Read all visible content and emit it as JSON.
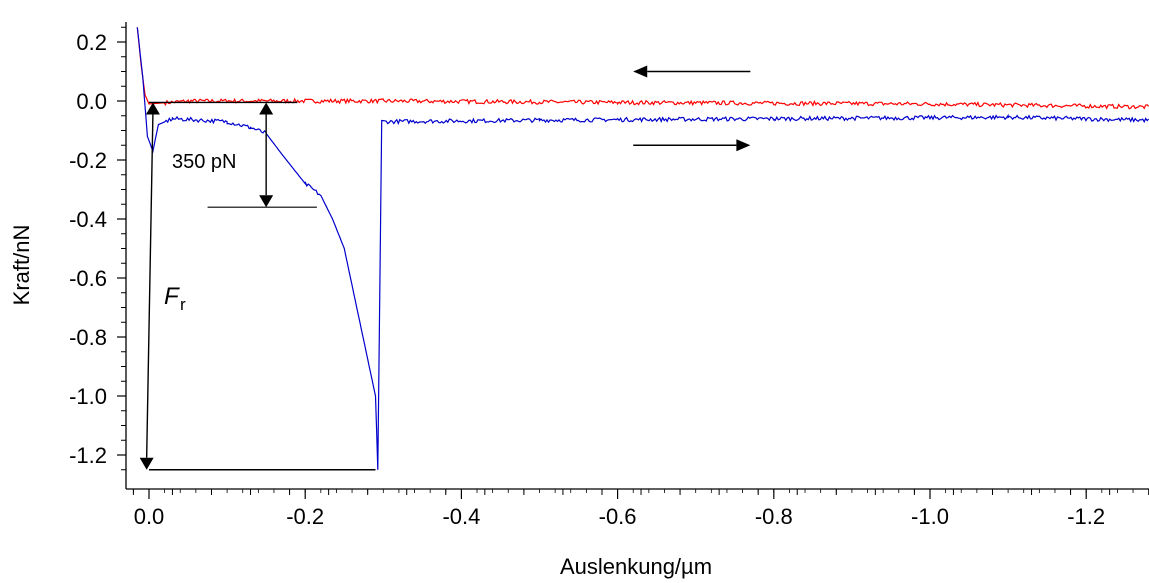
{
  "chart_data": {
    "type": "line",
    "xlabel": "Auslenkung/µm",
    "ylabel": "Kraft/nN",
    "x_reversed": true,
    "xlim": [
      0.02,
      -1.28
    ],
    "ylim": [
      -1.29,
      0.26
    ],
    "x_ticks": [
      0.0,
      -0.2,
      -0.4,
      -0.6,
      -0.8,
      -1.0,
      -1.2
    ],
    "x_tick_labels": [
      "0.0",
      "-0.2",
      "-0.4",
      "-0.6",
      "-0.8",
      "-1.0",
      "-1.2"
    ],
    "y_ticks": [
      0.2,
      0.0,
      -0.2,
      -0.4,
      -0.6,
      -0.8,
      -1.0,
      -1.2
    ],
    "y_tick_labels": [
      "0.2",
      "0.0",
      "-0.2",
      "-0.4",
      "-0.6",
      "-0.8",
      "-1.0",
      "-1.2"
    ],
    "grid": false,
    "series": [
      {
        "color": "#ff0000",
        "points": [
          [
            0.015,
            0.25
          ],
          [
            0.01,
            0.12
          ],
          [
            0.005,
            0.02
          ],
          [
            0.0,
            -0.01
          ],
          [
            -0.05,
            0.0
          ],
          [
            -0.1,
            0.0
          ],
          [
            -0.3,
            0.0
          ],
          [
            -0.6,
            -0.005
          ],
          [
            -1.0,
            -0.01
          ],
          [
            -1.28,
            -0.02
          ]
        ]
      },
      {
        "color": "#0000cc",
        "points": [
          [
            0.015,
            0.25
          ],
          [
            0.008,
            0.08
          ],
          [
            0.002,
            -0.12
          ],
          [
            -0.005,
            -0.17
          ],
          [
            -0.012,
            -0.08
          ],
          [
            -0.03,
            -0.06
          ],
          [
            -0.1,
            -0.07
          ],
          [
            -0.13,
            -0.09
          ],
          [
            -0.15,
            -0.11
          ],
          [
            -0.17,
            -0.18
          ],
          [
            -0.2,
            -0.28
          ],
          [
            -0.22,
            -0.32
          ],
          [
            -0.235,
            -0.4
          ],
          [
            -0.25,
            -0.5
          ],
          [
            -0.27,
            -0.75
          ],
          [
            -0.29,
            -1.0
          ],
          [
            -0.293,
            -1.25
          ],
          [
            -0.298,
            -0.07
          ],
          [
            -0.5,
            -0.065
          ],
          [
            -0.8,
            -0.06
          ],
          [
            -1.1,
            -0.055
          ],
          [
            -1.28,
            -0.065
          ]
        ]
      }
    ],
    "annotations": [
      {
        "text": "350 pN"
      },
      {
        "text": "F",
        "subscript": "r"
      }
    ]
  }
}
